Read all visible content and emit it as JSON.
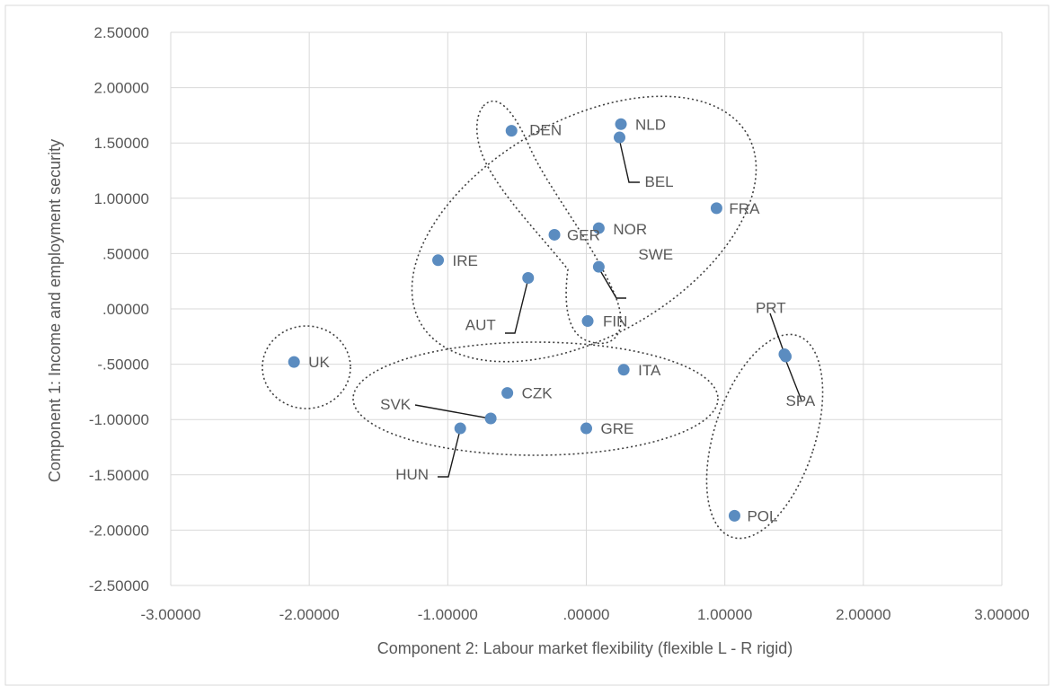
{
  "chart_data": {
    "type": "scatter",
    "xlabel": "Component  2: Labour market flexibility (flexible L - R rigid)",
    "ylabel": "Component  1: Income and employment  security",
    "xlim": [
      -3,
      3
    ],
    "ylim": [
      -2.5,
      2.5
    ],
    "x_ticks": [
      {
        "value": -3,
        "label": "-3.00000"
      },
      {
        "value": -2,
        "label": "-2.00000"
      },
      {
        "value": -1,
        "label": "-1.00000"
      },
      {
        "value": 0,
        "label": ".00000"
      },
      {
        "value": 1,
        "label": "1.00000"
      },
      {
        "value": 2,
        "label": "2.00000"
      },
      {
        "value": 3,
        "label": "3.00000"
      }
    ],
    "y_ticks": [
      {
        "value": 2.5,
        "label": "2.50000"
      },
      {
        "value": 2,
        "label": "2.00000"
      },
      {
        "value": 1.5,
        "label": "1.50000"
      },
      {
        "value": 1,
        "label": "1.00000"
      },
      {
        "value": 0.5,
        "label": ".50000"
      },
      {
        "value": 0,
        "label": ".00000"
      },
      {
        "value": -0.5,
        "label": "-.50000"
      },
      {
        "value": -1,
        "label": "-1.00000"
      },
      {
        "value": -1.5,
        "label": "-1.50000"
      },
      {
        "value": -2,
        "label": "-2.00000"
      },
      {
        "value": -2.5,
        "label": "-2.50000"
      }
    ],
    "grid": true,
    "legend": "none",
    "marker_color": "#5b8cc0",
    "points": [
      {
        "label": "DEN",
        "x": -0.54,
        "y": 1.61
      },
      {
        "label": "NLD",
        "x": 0.25,
        "y": 1.67
      },
      {
        "label": "BEL",
        "x": 0.24,
        "y": 1.55
      },
      {
        "label": "FRA",
        "x": 0.94,
        "y": 0.91
      },
      {
        "label": "NOR",
        "x": 0.09,
        "y": 0.73
      },
      {
        "label": "GER",
        "x": -0.23,
        "y": 0.67
      },
      {
        "label": "IRE",
        "x": -1.07,
        "y": 0.44
      },
      {
        "label": "SWE",
        "x": 0.09,
        "y": 0.38
      },
      {
        "label": "AUT",
        "x": -0.42,
        "y": 0.28
      },
      {
        "label": "FIN",
        "x": 0.01,
        "y": -0.11
      },
      {
        "label": "UK",
        "x": -2.11,
        "y": -0.48
      },
      {
        "label": "ITA",
        "x": 0.27,
        "y": -0.55
      },
      {
        "label": "PRT",
        "x": 1.43,
        "y": -0.41
      },
      {
        "label": "SPA",
        "x": 1.44,
        "y": -0.43
      },
      {
        "label": "CZK",
        "x": -0.57,
        "y": -0.76
      },
      {
        "label": "SVK",
        "x": -0.69,
        "y": -0.99
      },
      {
        "label": "HUN",
        "x": -0.91,
        "y": -1.08
      },
      {
        "label": "GRE",
        "x": 0.0,
        "y": -1.08
      },
      {
        "label": "POL",
        "x": 1.07,
        "y": -1.87
      }
    ]
  }
}
